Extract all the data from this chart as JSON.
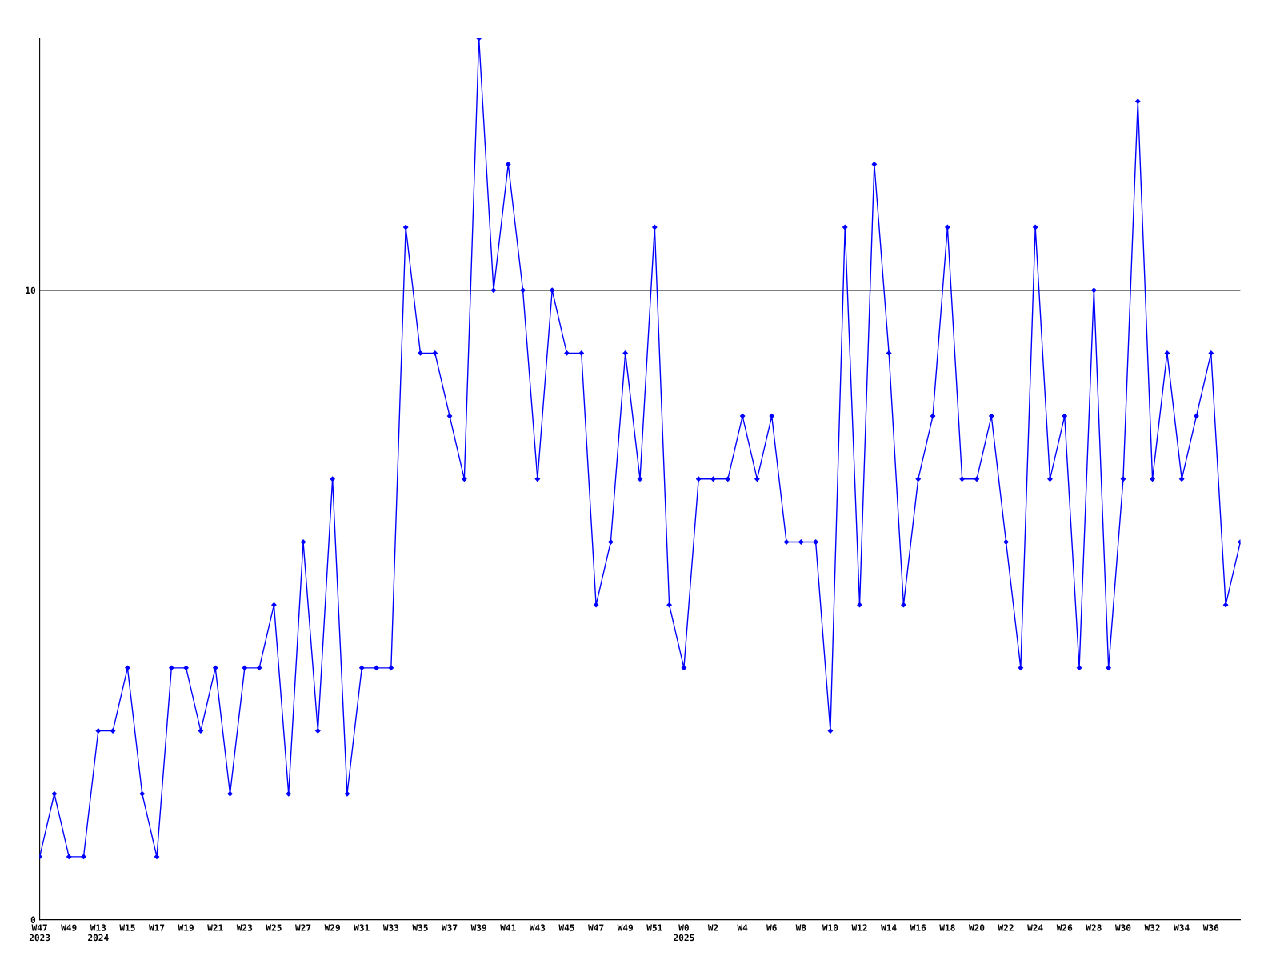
{
  "chart_data": {
    "type": "line",
    "categories": [
      "W47\n2023",
      null,
      "W49",
      null,
      "W13\n2024",
      null,
      "W15",
      null,
      "W17",
      null,
      "W19",
      null,
      "W21",
      null,
      "W23",
      null,
      "W25",
      null,
      "W27",
      null,
      "W29",
      null,
      "W31",
      null,
      "W33",
      null,
      "W35",
      null,
      "W37",
      null,
      "W39",
      null,
      "W41",
      null,
      "W43",
      null,
      "W45",
      null,
      "W47",
      null,
      "W49",
      null,
      "W51",
      null,
      "W0\n2025",
      null,
      "W2",
      null,
      "W4",
      null,
      "W6",
      null,
      "W8",
      null,
      "W10",
      null,
      "W12",
      null,
      "W14",
      null,
      "W16",
      null,
      "W18",
      null,
      "W20",
      null,
      "W22",
      null,
      "W24",
      null,
      "W26",
      null,
      "W28",
      null,
      "W30",
      null,
      "W32",
      null,
      "W34",
      null,
      "W36",
      null,
      null
    ],
    "series": [
      {
        "color": "#0000ff",
        "values": [
          1,
          2,
          1,
          1,
          3,
          3,
          4,
          2,
          1,
          4,
          4,
          3,
          4,
          2,
          4,
          4,
          5,
          2,
          6,
          3,
          7,
          2,
          4,
          4,
          4,
          11,
          9,
          9,
          8,
          7,
          14,
          10,
          12,
          10,
          7,
          10,
          9,
          9,
          5,
          6,
          9,
          7,
          11,
          5,
          4,
          7,
          7,
          7,
          8,
          7,
          8,
          6,
          6,
          6,
          3,
          11,
          5,
          12,
          9,
          5,
          7,
          8,
          11,
          7,
          7,
          8,
          6,
          4,
          11,
          7,
          8,
          4,
          10,
          4,
          7,
          13,
          7,
          9,
          7,
          8,
          9,
          5,
          6
        ]
      }
    ],
    "ylim": [
      0,
      14
    ],
    "yticks": [
      0,
      10
    ],
    "grid": "y",
    "marker": "diamond",
    "line_style": "solid"
  }
}
